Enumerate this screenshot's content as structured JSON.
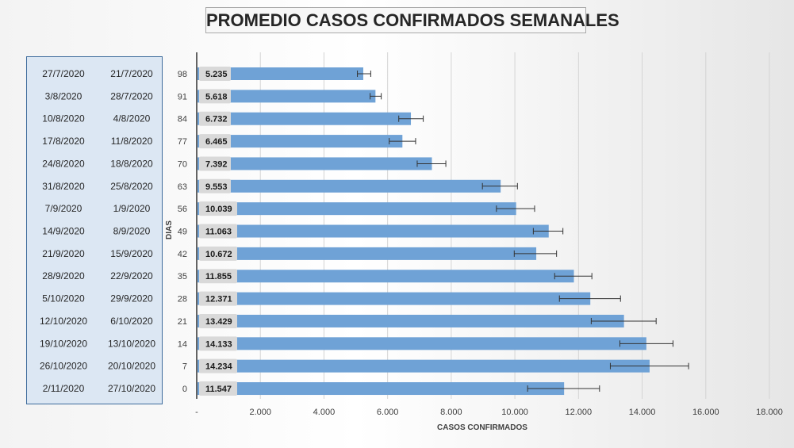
{
  "title": "PROMEDIO CASOS CONFIRMADOS SEMANALES",
  "chart_data": {
    "type": "bar",
    "orientation": "horizontal",
    "title": "PROMEDIO CASOS CONFIRMADOS SEMANALES",
    "xlabel": "CASOS CONFIRMADOS",
    "ylabel": "DIAS",
    "xlim": [
      0,
      18000
    ],
    "x_ticks": [
      "-",
      "2.000",
      "4.000",
      "6.000",
      "8.000",
      "10.000",
      "12.000",
      "14.000",
      "16.000",
      "18.000"
    ],
    "grid": "vertical",
    "bar_color": "#6fa2d6",
    "categories": [
      "98",
      "91",
      "84",
      "77",
      "70",
      "63",
      "56",
      "49",
      "42",
      "35",
      "28",
      "21",
      "14",
      "7",
      "0"
    ],
    "values": [
      5235,
      5618,
      6732,
      6465,
      7392,
      9553,
      10039,
      11063,
      10672,
      11855,
      12371,
      13429,
      14133,
      14234,
      11547
    ],
    "value_labels": [
      "5.235",
      "5.618",
      "6.732",
      "6.465",
      "7.392",
      "9.553",
      "10.039",
      "11.063",
      "10.672",
      "11.855",
      "12.371",
      "13.429",
      "14.133",
      "14.234",
      "11.547"
    ],
    "error_low": [
      5050,
      5450,
      6350,
      6050,
      6930,
      8980,
      9420,
      10580,
      9980,
      11250,
      11400,
      12400,
      13300,
      13000,
      10400
    ],
    "error_high": [
      5470,
      5800,
      7120,
      6880,
      7830,
      10080,
      10620,
      11510,
      11310,
      12420,
      13320,
      14440,
      14970,
      15460,
      12660
    ],
    "week_end_dates": [
      "27/7/2020",
      "3/8/2020",
      "10/8/2020",
      "17/8/2020",
      "24/8/2020",
      "31/8/2020",
      "7/9/2020",
      "14/9/2020",
      "21/9/2020",
      "28/9/2020",
      "5/10/2020",
      "12/10/2020",
      "19/10/2020",
      "26/10/2020",
      "2/11/2020"
    ],
    "week_start_dates": [
      "21/7/2020",
      "28/7/2020",
      "4/8/2020",
      "11/8/2020",
      "18/8/2020",
      "25/8/2020",
      "1/9/2020",
      "8/9/2020",
      "15/9/2020",
      "22/9/2020",
      "29/9/2020",
      "6/10/2020",
      "13/10/2020",
      "20/10/2020",
      "27/10/2020"
    ]
  }
}
